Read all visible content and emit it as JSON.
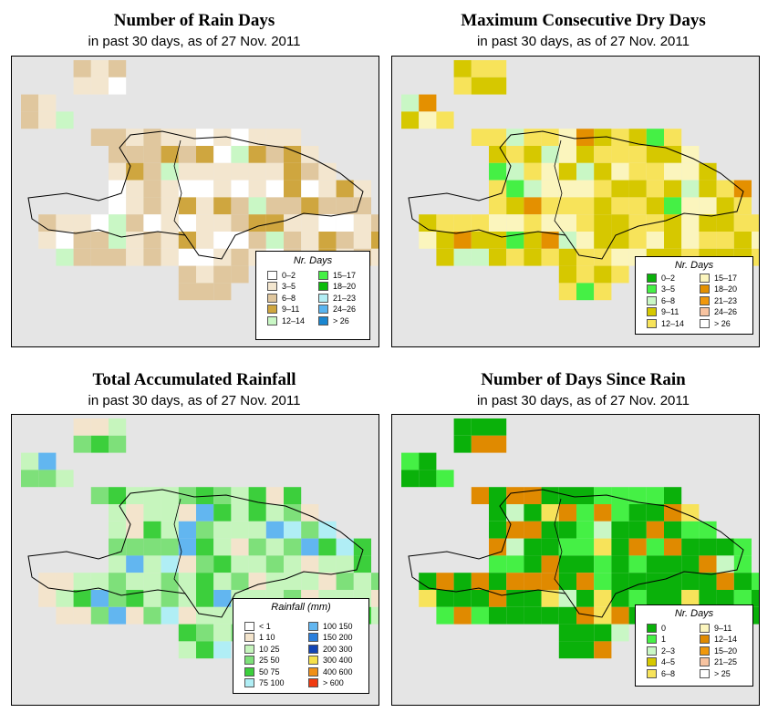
{
  "panels": [
    {
      "id": "rain-days",
      "title": "Number of Rain Days",
      "subtitle": "in past 30 days, as of  27 Nov. 2011",
      "legend": {
        "title": "Nr. Days",
        "items": [
          {
            "label": "0–2",
            "color": "#ffffff"
          },
          {
            "label": "3–5",
            "color": "#f3e6cf"
          },
          {
            "label": "6–8",
            "color": "#e0c79e"
          },
          {
            "label": "9–11",
            "color": "#cfa63f"
          },
          {
            "label": "12–14",
            "color": "#c9f7c5"
          },
          {
            "label": "15–17",
            "color": "#45f045"
          },
          {
            "label": "18–20",
            "color": "#0cbb0c"
          },
          {
            "label": "21–23",
            "color": "#b2eef5"
          },
          {
            "label": "24–26",
            "color": "#59b4f0"
          },
          {
            "label": "> 26",
            "color": "#1a86d0"
          }
        ]
      }
    },
    {
      "id": "dry-days",
      "title": "Maximum Consecutive Dry Days",
      "subtitle": "in past 30 days, as of  27 Nov. 2011",
      "legend": {
        "title": "Nr. Days",
        "items": [
          {
            "label": "0–2",
            "color": "#0ab10a"
          },
          {
            "label": "3–5",
            "color": "#45f045"
          },
          {
            "label": "6–8",
            "color": "#c9f7c5"
          },
          {
            "label": "9–11",
            "color": "#d6c800"
          },
          {
            "label": "12–14",
            "color": "#f7e35a"
          },
          {
            "label": "15–17",
            "color": "#fbf5bd"
          },
          {
            "label": "18–20",
            "color": "#e49000"
          },
          {
            "label": "21–23",
            "color": "#f0980c"
          },
          {
            "label": "24–26",
            "color": "#f7c3a0"
          },
          {
            "label": "> 26",
            "color": "#ffffff"
          }
        ]
      }
    },
    {
      "id": "rainfall",
      "title": "Total Accumulated Rainfall",
      "subtitle": "in past 30 days, as of  27 Nov. 2011",
      "legend": {
        "title": "Rainfall (mm)",
        "items": [
          {
            "label": "< 1",
            "color": "#ffffff"
          },
          {
            "label": "1   10",
            "color": "#f3e4cc"
          },
          {
            "label": "10   25",
            "color": "#c6f5bd"
          },
          {
            "label": "25   50",
            "color": "#7ee07a"
          },
          {
            "label": "50   75",
            "color": "#3ccf3c"
          },
          {
            "label": "75  100",
            "color": "#b0eef5"
          },
          {
            "label": "100  150",
            "color": "#62b6f0"
          },
          {
            "label": "150  200",
            "color": "#2b7fdc"
          },
          {
            "label": "200  300",
            "color": "#1244b4"
          },
          {
            "label": "300  400",
            "color": "#f5e04a"
          },
          {
            "label": "400  600",
            "color": "#f09018"
          },
          {
            "label": "> 600",
            "color": "#f03a10"
          }
        ]
      }
    },
    {
      "id": "days-since-rain",
      "title": "Number of Days Since Rain",
      "subtitle": "in past 30 days, as of  27 Nov. 2011",
      "legend": {
        "title": "Nr. Days",
        "items": [
          {
            "label": "0",
            "color": "#0ab10a"
          },
          {
            "label": "1",
            "color": "#45f045"
          },
          {
            "label": "2–3",
            "color": "#c9f7c5"
          },
          {
            "label": "4–5",
            "color": "#d6c800"
          },
          {
            "label": "6–8",
            "color": "#f7e35a"
          },
          {
            "label": "9–11",
            "color": "#fbf5bd"
          },
          {
            "label": "12–14",
            "color": "#e08a00"
          },
          {
            "label": "15–20",
            "color": "#f0980c"
          },
          {
            "label": "21–25",
            "color": "#f7c3a0"
          },
          {
            "label": "> 25",
            "color": "#ffffff"
          }
        ]
      }
    }
  ]
}
